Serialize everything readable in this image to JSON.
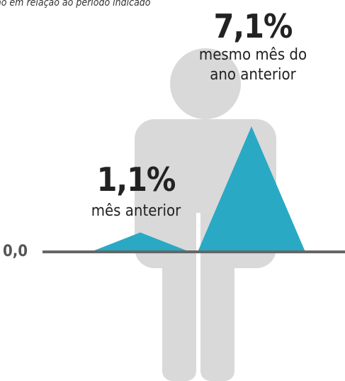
{
  "chart_data": {
    "type": "triangle",
    "subtitle": "ão em relação ao período indicado",
    "categories": [
      "mês anterior",
      "mesmo mês do ano anterior"
    ],
    "values": [
      1.1,
      7.1
    ],
    "value_labels": [
      "1,1%",
      "7,1%"
    ],
    "color": "#29a9c4",
    "ylim": [
      0,
      7.5
    ],
    "yticks": [
      {
        "value": 0,
        "label": "0,0"
      }
    ]
  }
}
